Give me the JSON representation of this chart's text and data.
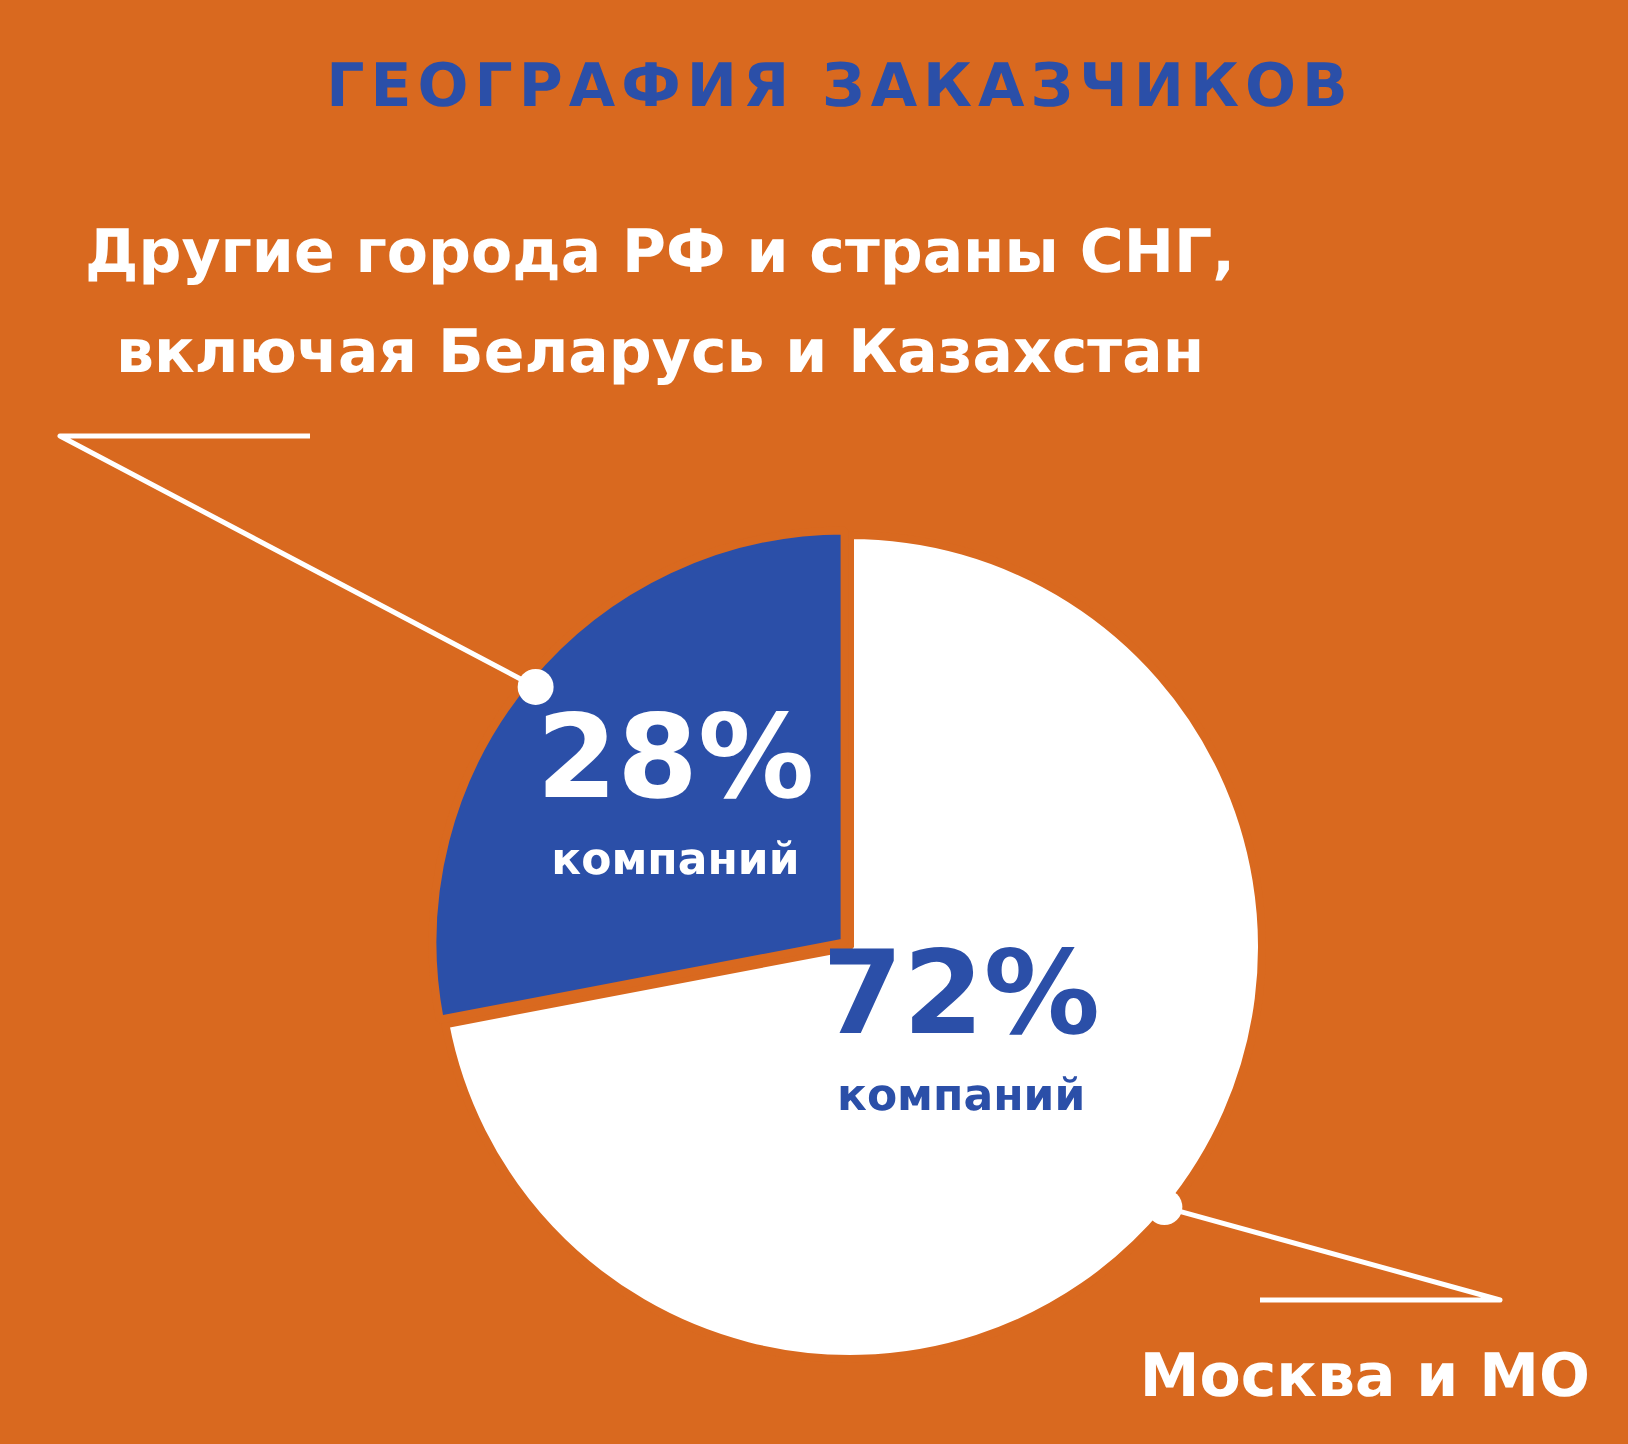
{
  "chart_data": {
    "type": "pie",
    "title": "ГЕОГРАФИЯ ЗАКАЗЧИКОВ",
    "categories": [
      "Москва и МО",
      "Другие города РФ и страны СНГ, включая Беларусь и Казахстан"
    ],
    "values": [
      72,
      28
    ],
    "colors": [
      "#ffffff",
      "#2b4fa8"
    ],
    "value_labels": [
      "72% компаний",
      "28% компаний"
    ],
    "legend": false
  }
}
